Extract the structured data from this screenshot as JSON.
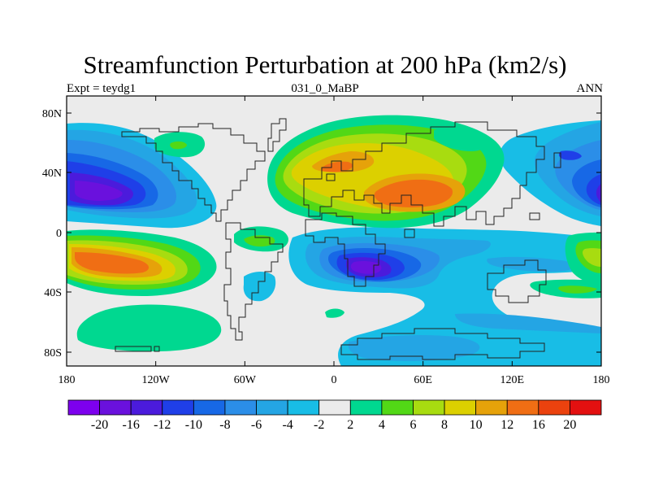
{
  "title": "Streamfunction Perturbation at 200 hPa (km2/s)",
  "experiment": "Expt = teydg1",
  "period": "031_0_MaBP",
  "season": "ANN",
  "lat_ticks": [
    "80N",
    "40N",
    "0",
    "40S",
    "80S"
  ],
  "lon_ticks": [
    "180",
    "120W",
    "60W",
    "0",
    "60E",
    "120E",
    "180"
  ],
  "colorbar": {
    "colors": [
      "#7d00ee",
      "#6a11dd",
      "#4b1bdc",
      "#1f3fe8",
      "#1768e6",
      "#2b8ee8",
      "#24a5e4",
      "#18bde6",
      "#ebebeb",
      "#00d890",
      "#52d816",
      "#a8dc10",
      "#dcd000",
      "#e6a20a",
      "#f06e14",
      "#eb420e",
      "#e31010"
    ],
    "labels": [
      "-20",
      "-16",
      "-12",
      "-10",
      "-8",
      "-6",
      "-4",
      "-2",
      "2",
      "4",
      "6",
      "8",
      "10",
      "12",
      "16",
      "20"
    ]
  }
}
